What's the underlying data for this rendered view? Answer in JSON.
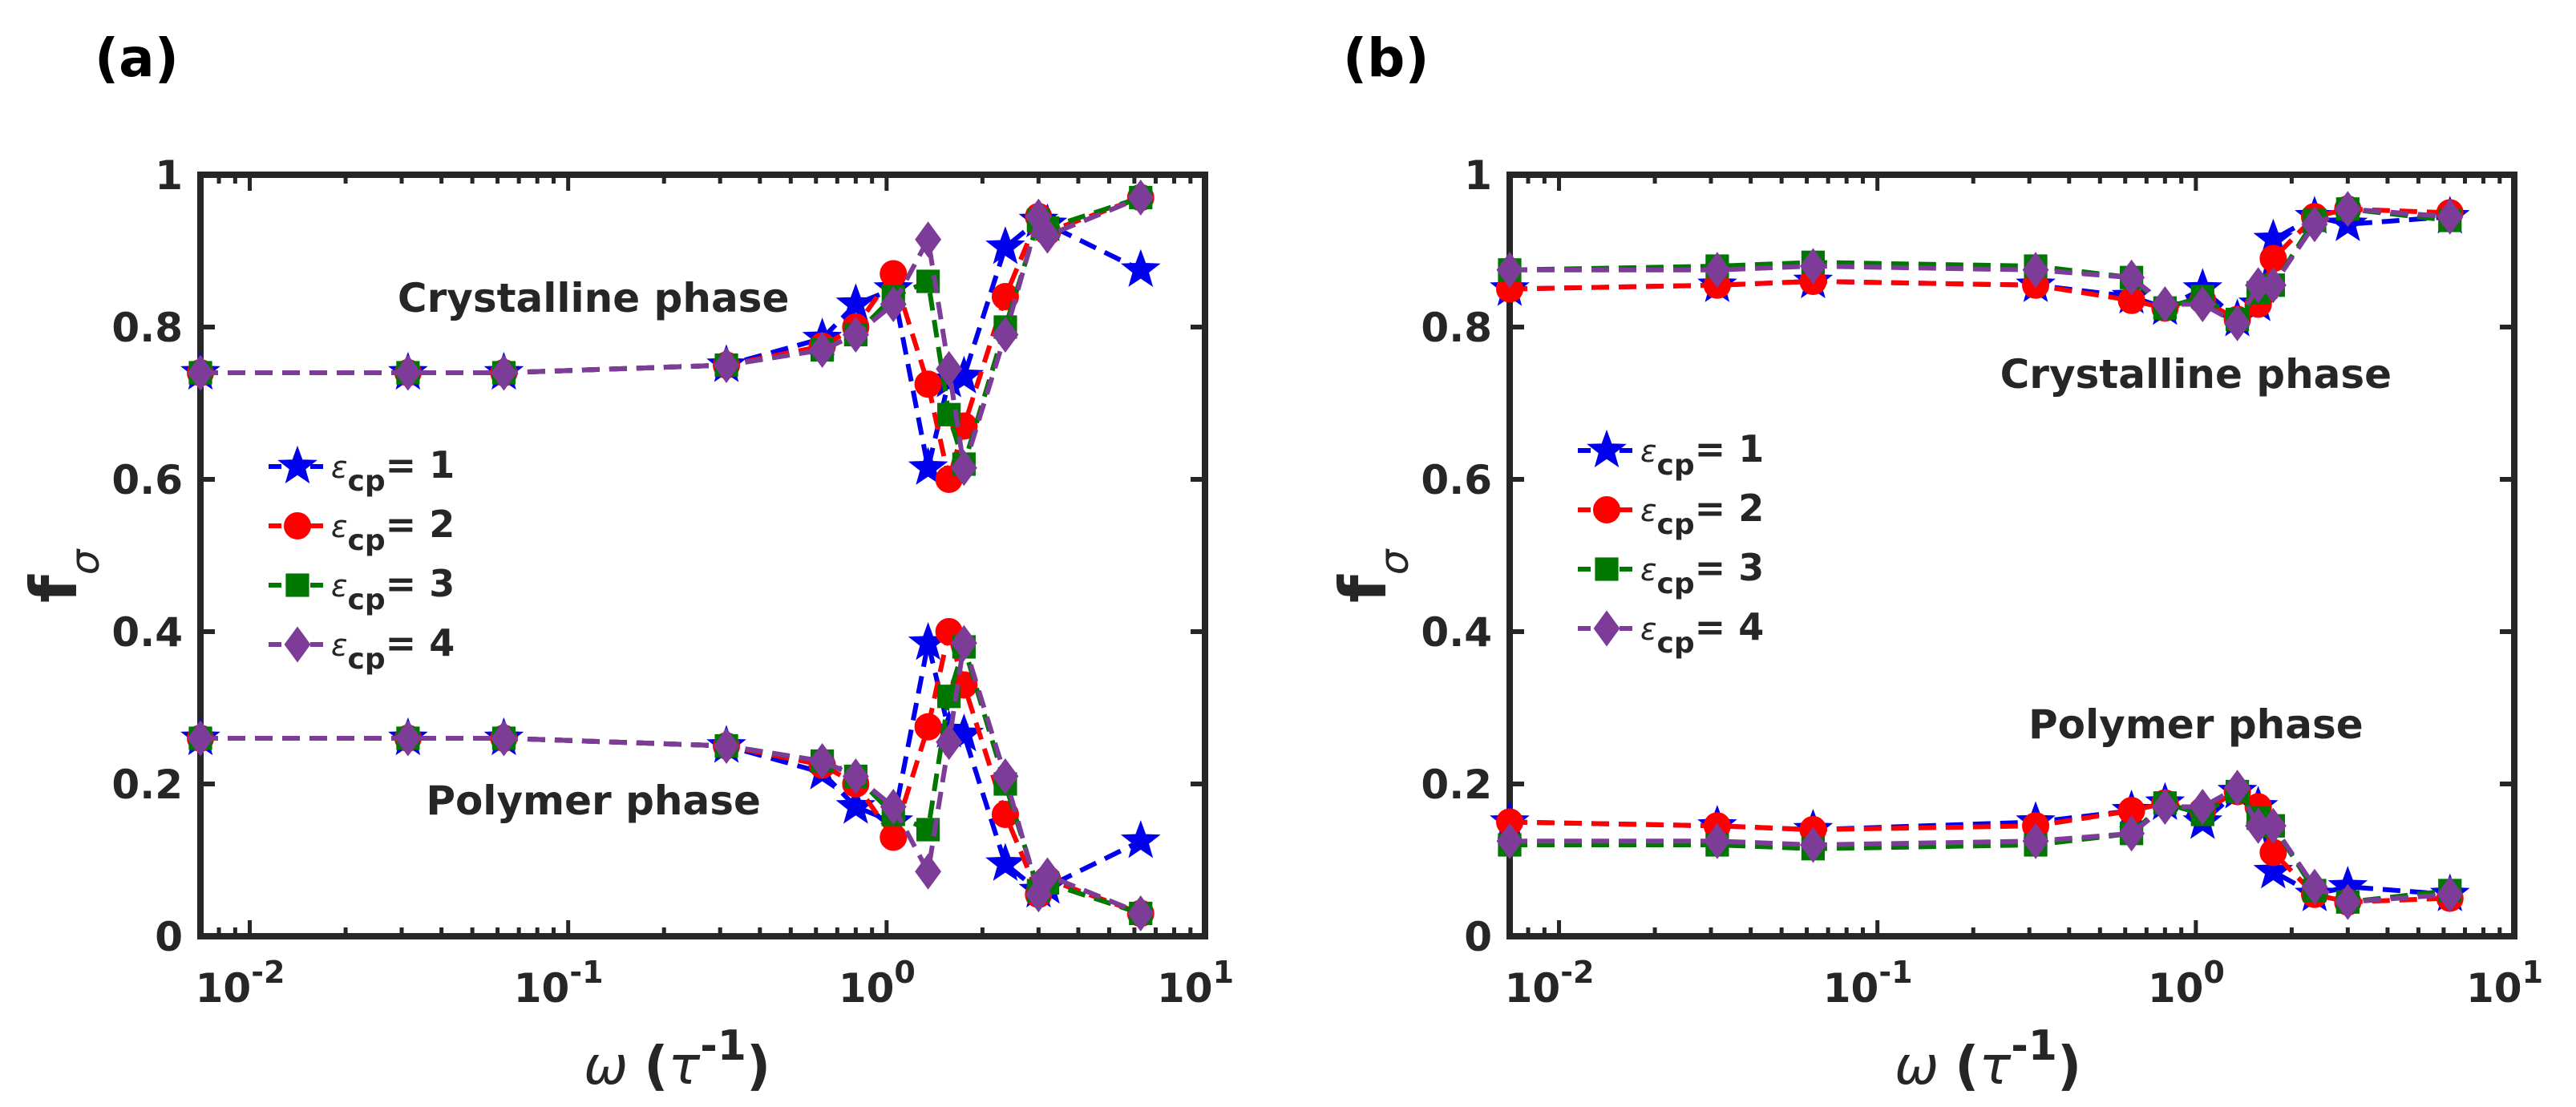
{
  "chart_data": [
    {
      "panel_label": "(a)",
      "type": "line",
      "xscale": "log",
      "xlim": [
        0.007,
        10
      ],
      "ylim": [
        0,
        1
      ],
      "xlabel": {
        "symbol": "ω",
        "open": "(",
        "base": "τ",
        "exp": "-1",
        "close": ")"
      },
      "ylabel": {
        "base": "f",
        "sub": "σ"
      },
      "xticks": [
        {
          "value": 0.01,
          "base": "10",
          "exp": "-2"
        },
        {
          "value": 0.1,
          "base": "10",
          "exp": "-1"
        },
        {
          "value": 1,
          "base": "10",
          "exp": "0"
        },
        {
          "value": 10,
          "base": "10",
          "exp": "1"
        }
      ],
      "yticks": [
        {
          "value": 0,
          "label": "0"
        },
        {
          "value": 0.2,
          "label": "0.2"
        },
        {
          "value": 0.4,
          "label": "0.4"
        },
        {
          "value": 0.6,
          "label": "0.6"
        },
        {
          "value": 0.8,
          "label": "0.8"
        },
        {
          "value": 1,
          "label": "1"
        }
      ],
      "annotations": [
        {
          "text": "Crystalline phase",
          "x": 0.12,
          "y": 0.82
        },
        {
          "text": "Polymer phase",
          "x": 0.12,
          "y": 0.16
        }
      ],
      "legend": {
        "position": "middle-left",
        "eps": "ε",
        "sub": "cp"
      },
      "x": [
        0.007,
        0.0314,
        0.0628,
        0.314,
        0.628,
        0.8,
        1.05,
        1.35,
        1.57,
        1.75,
        2.36,
        3.0,
        3.2,
        6.28
      ],
      "series": [
        {
          "name": "1",
          "color": "#0000ee",
          "marker": "star",
          "crystalline": [
            0.74,
            0.74,
            0.74,
            0.75,
            0.785,
            0.83,
            0.85,
            0.615,
            0.73,
            0.735,
            0.905,
            0.94,
            0.935,
            0.875
          ],
          "polymer": [
            0.26,
            0.26,
            0.26,
            0.25,
            0.215,
            0.17,
            0.15,
            0.385,
            0.27,
            0.265,
            0.095,
            0.06,
            0.065,
            0.125
          ]
        },
        {
          "name": "2",
          "color": "#ff0000",
          "marker": "circle",
          "crystalline": [
            0.74,
            0.74,
            0.74,
            0.75,
            0.775,
            0.8,
            0.87,
            0.725,
            0.6,
            0.67,
            0.84,
            0.945,
            0.925,
            0.97
          ],
          "polymer": [
            0.26,
            0.26,
            0.26,
            0.25,
            0.225,
            0.2,
            0.13,
            0.275,
            0.4,
            0.33,
            0.16,
            0.055,
            0.075,
            0.03
          ]
        },
        {
          "name": "3",
          "color": "#007700",
          "marker": "square",
          "crystalline": [
            0.74,
            0.74,
            0.74,
            0.75,
            0.77,
            0.79,
            0.84,
            0.86,
            0.685,
            0.62,
            0.8,
            0.94,
            0.93,
            0.97
          ],
          "polymer": [
            0.26,
            0.26,
            0.26,
            0.25,
            0.23,
            0.21,
            0.16,
            0.14,
            0.315,
            0.38,
            0.2,
            0.06,
            0.07,
            0.03
          ]
        },
        {
          "name": "4",
          "color": "#7d3c98",
          "marker": "diamond",
          "crystalline": [
            0.74,
            0.74,
            0.74,
            0.75,
            0.77,
            0.79,
            0.83,
            0.915,
            0.745,
            0.615,
            0.79,
            0.945,
            0.92,
            0.97
          ],
          "polymer": [
            0.26,
            0.26,
            0.26,
            0.25,
            0.23,
            0.21,
            0.17,
            0.085,
            0.255,
            0.385,
            0.21,
            0.055,
            0.08,
            0.03
          ]
        }
      ]
    },
    {
      "panel_label": "(b)",
      "type": "line",
      "xscale": "log",
      "xlim": [
        0.007,
        10
      ],
      "ylim": [
        0,
        1
      ],
      "xlabel": {
        "symbol": "ω",
        "open": "(",
        "base": "τ",
        "exp": "-1",
        "close": ")"
      },
      "ylabel": {
        "base": "f",
        "sub": "σ"
      },
      "xticks": [
        {
          "value": 0.01,
          "base": "10",
          "exp": "-2"
        },
        {
          "value": 0.1,
          "base": "10",
          "exp": "-1"
        },
        {
          "value": 1,
          "base": "10",
          "exp": "0"
        },
        {
          "value": 10,
          "base": "10",
          "exp": "1"
        }
      ],
      "yticks": [
        {
          "value": 0,
          "label": "0"
        },
        {
          "value": 0.2,
          "label": "0.2"
        },
        {
          "value": 0.4,
          "label": "0.4"
        },
        {
          "value": 0.6,
          "label": "0.6"
        },
        {
          "value": 0.8,
          "label": "0.8"
        },
        {
          "value": 1,
          "label": "1"
        }
      ],
      "annotations": [
        {
          "text": "Crystalline phase",
          "x": 1.0,
          "y": 0.72
        },
        {
          "text": "Polymer phase",
          "x": 1.0,
          "y": 0.26
        }
      ],
      "legend": {
        "position": "middle-left",
        "eps": "ε",
        "sub": "cp"
      },
      "x": [
        0.007,
        0.0314,
        0.0628,
        0.314,
        0.628,
        0.8,
        1.05,
        1.35,
        1.57,
        1.75,
        2.36,
        3.0,
        6.28
      ],
      "series": [
        {
          "name": "1",
          "color": "#0000ee",
          "marker": "star",
          "crystalline": [
            0.85,
            0.855,
            0.86,
            0.855,
            0.84,
            0.825,
            0.85,
            0.81,
            0.83,
            0.915,
            0.945,
            0.935,
            0.945
          ],
          "polymer": [
            0.15,
            0.145,
            0.14,
            0.15,
            0.165,
            0.175,
            0.15,
            0.19,
            0.17,
            0.085,
            0.055,
            0.065,
            0.055
          ]
        },
        {
          "name": "2",
          "color": "#ff0000",
          "marker": "circle",
          "crystalline": [
            0.85,
            0.855,
            0.86,
            0.855,
            0.835,
            0.825,
            0.835,
            0.81,
            0.83,
            0.89,
            0.945,
            0.955,
            0.95
          ],
          "polymer": [
            0.15,
            0.145,
            0.14,
            0.145,
            0.165,
            0.175,
            0.165,
            0.19,
            0.17,
            0.11,
            0.055,
            0.045,
            0.05
          ]
        },
        {
          "name": "3",
          "color": "#007700",
          "marker": "square",
          "crystalline": [
            0.875,
            0.88,
            0.885,
            0.88,
            0.865,
            0.825,
            0.84,
            0.81,
            0.845,
            0.855,
            0.94,
            0.955,
            0.94
          ],
          "polymer": [
            0.12,
            0.12,
            0.115,
            0.12,
            0.135,
            0.175,
            0.16,
            0.19,
            0.155,
            0.145,
            0.06,
            0.045,
            0.06
          ]
        },
        {
          "name": "4",
          "color": "#7d3c98",
          "marker": "diamond",
          "crystalline": [
            0.875,
            0.875,
            0.88,
            0.875,
            0.865,
            0.83,
            0.83,
            0.805,
            0.855,
            0.855,
            0.935,
            0.955,
            0.945
          ],
          "polymer": [
            0.125,
            0.125,
            0.12,
            0.125,
            0.135,
            0.17,
            0.17,
            0.195,
            0.145,
            0.145,
            0.065,
            0.045,
            0.055
          ]
        }
      ]
    }
  ]
}
